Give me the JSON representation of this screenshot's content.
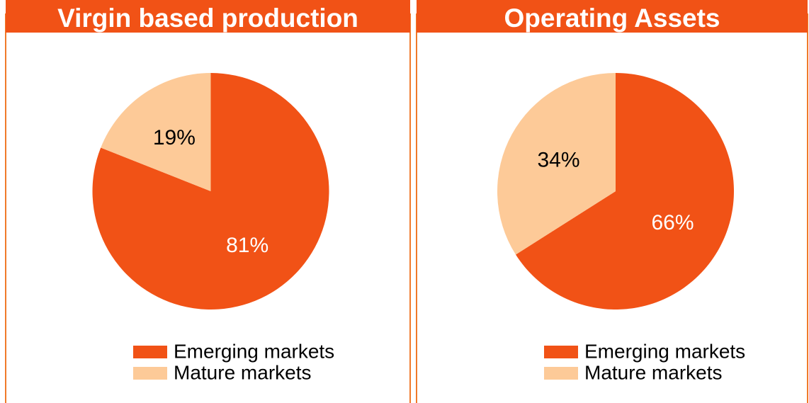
{
  "chart_data": [
    {
      "type": "pie",
      "title": "Virgin based production",
      "categories": [
        "Emerging markets",
        "Mature markets"
      ],
      "values": [
        81,
        19
      ],
      "value_labels": [
        "81%",
        "19%"
      ],
      "colors": [
        "#f15216",
        "#fdca98"
      ],
      "label_colors": [
        "#ffffff",
        "#000000"
      ]
    },
    {
      "type": "pie",
      "title": "Operating Assets",
      "categories": [
        "Emerging markets",
        "Mature markets"
      ],
      "values": [
        66,
        34
      ],
      "value_labels": [
        "66%",
        "34%"
      ],
      "colors": [
        "#f15216",
        "#fdca98"
      ],
      "label_colors": [
        "#ffffff",
        "#000000"
      ]
    }
  ]
}
